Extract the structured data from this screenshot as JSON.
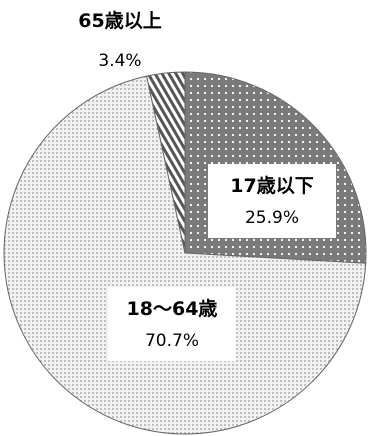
{
  "chart_data": {
    "type": "pie",
    "categories": [
      "17歳以下",
      "18〜64歳",
      "65歳以上"
    ],
    "values": [
      25.9,
      70.7,
      3.4
    ],
    "value_labels": [
      "25.9%",
      "70.7%",
      "3.4%"
    ],
    "patterns": [
      "dark-dots",
      "light-dots",
      "diagonal-stripes"
    ],
    "colors": {
      "dark_fill": "#7a7a7a",
      "light_fill": "#f2f2f2",
      "dot_light": "#ffffff",
      "dot_dark": "#9a9a9a",
      "stripe": "#555555",
      "outline": "#666666"
    },
    "start_angle_deg": 0,
    "direction": "clockwise",
    "legend": "none"
  }
}
